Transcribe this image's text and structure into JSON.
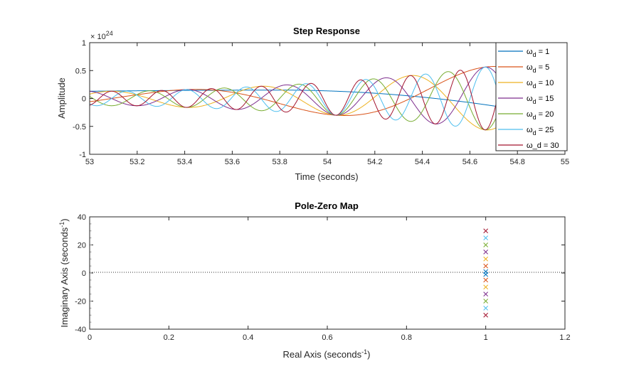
{
  "chart_data": [
    {
      "type": "line",
      "title": "Step Response",
      "xlabel": "Time (seconds)",
      "ylabel": "Amplitude",
      "y_exponent_label": "× 10",
      "y_exponent_power": "24",
      "xlim": [
        53,
        55
      ],
      "ylim": [
        -1,
        1
      ],
      "xticks": [
        "53",
        "53.2",
        "53.4",
        "53.6",
        "53.8",
        "54",
        "54.2",
        "54.4",
        "54.6",
        "54.8",
        "55"
      ],
      "yticks": [
        "1",
        "0.5",
        "0",
        "-0.5",
        "-1"
      ],
      "grid": false,
      "legend_position": "top-right",
      "series": [
        {
          "name": "ω",
          "sub": "d",
          "tail": " = 1",
          "omega": 1,
          "color": "#0072BD"
        },
        {
          "name": "ω",
          "sub": "d",
          "tail": " = 5",
          "omega": 5,
          "color": "#D95319"
        },
        {
          "name": "ω",
          "sub": "d",
          "tail": " = 10",
          "omega": 10,
          "color": "#EDB120"
        },
        {
          "name": "ω",
          "sub": "d",
          "tail": " = 15",
          "omega": 15,
          "color": "#7E2F8E"
        },
        {
          "name": "ω",
          "sub": "d",
          "tail": " = 20",
          "omega": 20,
          "color": "#77AC30"
        },
        {
          "name": "ω",
          "sub": "d",
          "tail": " = 25",
          "omega": 25,
          "color": "#4DBEEE"
        },
        {
          "name": "ω_d = 30",
          "sub": "",
          "tail": "",
          "omega": 30,
          "color": "#A2142F"
        }
      ]
    },
    {
      "type": "scatter",
      "title": "Pole-Zero Map",
      "xlabel": "Real Axis (seconds",
      "xlabel_sup": "-1",
      "xlabel_end": ")",
      "ylabel": "Imaginary Axis (seconds",
      "ylabel_sup": "-1",
      "ylabel_end": ")",
      "xlim": [
        0,
        1.2
      ],
      "ylim": [
        -40,
        40
      ],
      "xticks": [
        "0",
        "0.2",
        "0.4",
        "0.6",
        "0.8",
        "1",
        "1.2"
      ],
      "yticks": [
        "40",
        "20",
        "0",
        "-20",
        "-40"
      ],
      "marker": "x",
      "points": [
        {
          "x": 1,
          "y": 1,
          "color": "#0072BD"
        },
        {
          "x": 1,
          "y": -1,
          "color": "#0072BD"
        },
        {
          "x": 1,
          "y": 5,
          "color": "#D95319"
        },
        {
          "x": 1,
          "y": -5,
          "color": "#D95319"
        },
        {
          "x": 1,
          "y": 10,
          "color": "#EDB120"
        },
        {
          "x": 1,
          "y": -10,
          "color": "#EDB120"
        },
        {
          "x": 1,
          "y": 15,
          "color": "#7E2F8E"
        },
        {
          "x": 1,
          "y": -15,
          "color": "#7E2F8E"
        },
        {
          "x": 1,
          "y": 20,
          "color": "#77AC30"
        },
        {
          "x": 1,
          "y": -20,
          "color": "#77AC30"
        },
        {
          "x": 1,
          "y": 25,
          "color": "#4DBEEE"
        },
        {
          "x": 1,
          "y": -25,
          "color": "#4DBEEE"
        },
        {
          "x": 1,
          "y": 30,
          "color": "#A2142F"
        },
        {
          "x": 1,
          "y": -30,
          "color": "#A2142F"
        }
      ]
    }
  ]
}
